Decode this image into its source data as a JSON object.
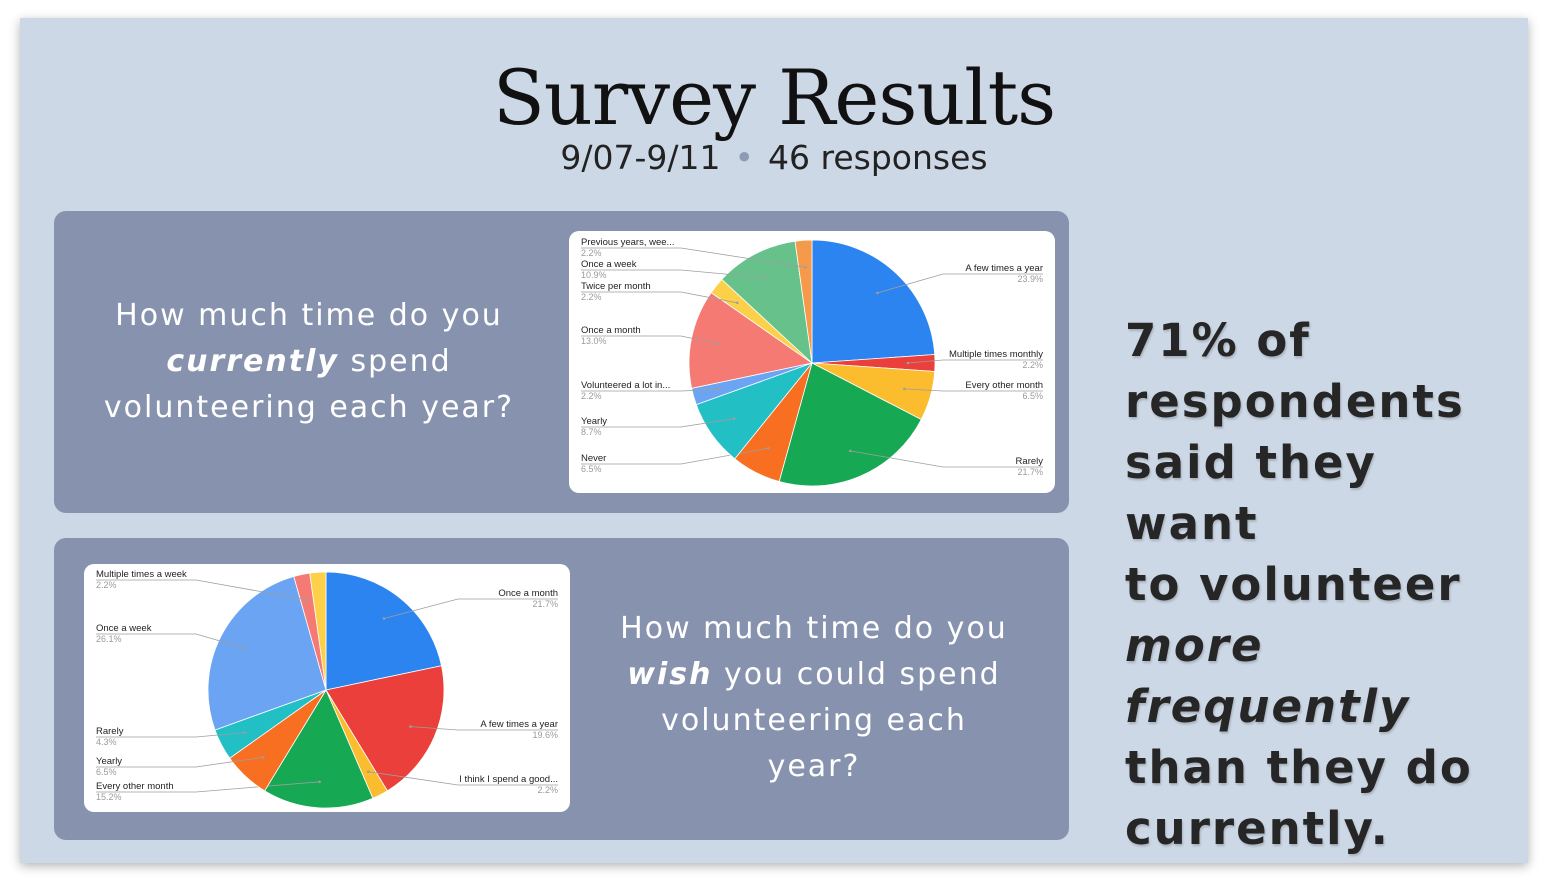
{
  "slide": {
    "title": "Survey Results",
    "date_range": "9/07-9/11",
    "separator": "•",
    "responses": "46 responses"
  },
  "question_current": {
    "line1": "How much time do you",
    "emphasis": "currently",
    "line2_rest": " spend",
    "line3": "volunteering each year?"
  },
  "question_wish": {
    "line1": "How much time do you",
    "emphasis": "wish",
    "line2_rest": " you could spend",
    "line3": "volunteering each",
    "line4": "year?"
  },
  "takeaway": {
    "line1": "71% of",
    "line2": "respondents",
    "line3": "said they want",
    "line4": "to volunteer",
    "emphasis": "more frequently",
    "line6": "than they do",
    "line7": "currently."
  },
  "chart_data": [
    {
      "type": "pie",
      "title": "",
      "slices": [
        {
          "label": "A few times a year",
          "percent": "23.9%",
          "value": 23.9,
          "color": "#2b84ef"
        },
        {
          "label": "Multiple times monthly",
          "percent": "2.2%",
          "value": 2.2,
          "color": "#ea3f3a"
        },
        {
          "label": "Every other month",
          "percent": "6.5%",
          "value": 6.5,
          "color": "#fbbc2e"
        },
        {
          "label": "Rarely",
          "percent": "21.7%",
          "value": 21.7,
          "color": "#16a852"
        },
        {
          "label": "Never",
          "percent": "6.5%",
          "value": 6.5,
          "color": "#f86f21"
        },
        {
          "label": "Yearly",
          "percent": "8.7%",
          "value": 8.7,
          "color": "#22bfc4"
        },
        {
          "label": "Volunteered a lot in...",
          "percent": "2.2%",
          "value": 2.2,
          "color": "#6aa4f2"
        },
        {
          "label": "Once a month",
          "percent": "13.0%",
          "value": 13.0,
          "color": "#f47a73"
        },
        {
          "label": "Twice per month",
          "percent": "2.2%",
          "value": 2.2,
          "color": "#fdd04a"
        },
        {
          "label": "Once a week",
          "percent": "10.9%",
          "value": 10.9,
          "color": "#66c28a"
        },
        {
          "label": "Previous years, wee...",
          "percent": "2.2%",
          "value": 2.2,
          "color": "#f59a4a"
        }
      ]
    },
    {
      "type": "pie",
      "title": "",
      "slices": [
        {
          "label": "Once a month",
          "percent": "21.7%",
          "value": 21.7,
          "color": "#2b84ef"
        },
        {
          "label": "A few times a year",
          "percent": "19.6%",
          "value": 19.6,
          "color": "#ea3f3a"
        },
        {
          "label": "I think I spend a good...",
          "percent": "2.2%",
          "value": 2.2,
          "color": "#fbbc2e"
        },
        {
          "label": "Every other month",
          "percent": "15.2%",
          "value": 15.2,
          "color": "#16a852"
        },
        {
          "label": "Yearly",
          "percent": "6.5%",
          "value": 6.5,
          "color": "#f86f21"
        },
        {
          "label": "Rarely",
          "percent": "4.3%",
          "value": 4.3,
          "color": "#22bfc4"
        },
        {
          "label": "Once a week",
          "percent": "26.1%",
          "value": 26.1,
          "color": "#6aa4f2"
        },
        {
          "label": "Multiple times a week",
          "percent": "2.2%",
          "value": 2.2,
          "color": "#f47a73"
        },
        {
          "label": "",
          "percent": "",
          "value": 2.2,
          "color": "#fdd04a"
        }
      ]
    }
  ]
}
